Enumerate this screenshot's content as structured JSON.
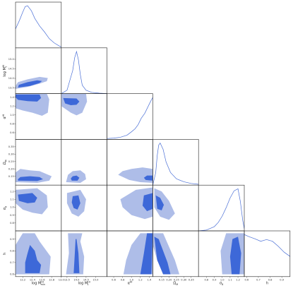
{
  "chart_data": {
    "type": "corner",
    "colors": {
      "outer_contour": "#aebde8",
      "inner_contour": "#3d68d8",
      "curve": "#4a6fd6",
      "frame": "#222222"
    },
    "parameters": [
      {
        "id": "logMmin",
        "label": "log M_min^HI",
        "range": [
          12.05,
          13.0
        ],
        "ticks": [
          12.2,
          12.4,
          12.6,
          12.8,
          13.0
        ],
        "tick_labels": [
          "12.2",
          "12.4",
          "12.6",
          "12.8",
          "13.0"
        ],
        "marginal": {
          "x": [
            12.05,
            12.13,
            12.2,
            12.25,
            12.3,
            12.38,
            12.45,
            12.55,
            12.65,
            12.75,
            12.85,
            12.95,
            13.0
          ],
          "y": [
            0.45,
            0.65,
            0.85,
            0.98,
            1.0,
            0.88,
            0.7,
            0.52,
            0.38,
            0.22,
            0.12,
            0.05,
            0.02
          ]
        }
      },
      {
        "id": "logM1",
        "label": "log M_1^HI",
        "range": [
          13.2,
          15.6
        ],
        "ticks": [
          13.5,
          14.0,
          14.5,
          15.0
        ],
        "tick_labels": [
          "13.5",
          "14.0",
          "14.5",
          "15.0"
        ],
        "marginal": {
          "x": [
            13.2,
            13.5,
            13.8,
            13.9,
            14.0,
            14.1,
            14.2,
            14.3,
            14.5,
            14.8,
            15.2,
            15.6
          ],
          "y": [
            0.0,
            0.08,
            0.55,
            0.85,
            1.0,
            0.8,
            0.45,
            0.2,
            0.08,
            0.03,
            0.01,
            0.0
          ]
        }
      },
      {
        "id": "alpha",
        "label": "α^HI",
        "range": [
          0.45,
          1.48
        ],
        "ticks": [
          0.6,
          0.8,
          1.0,
          1.2,
          1.4
        ],
        "tick_labels": [
          "0.6",
          "0.8",
          "1.0",
          "1.2",
          "1.4"
        ],
        "marginal": {
          "x": [
            0.45,
            0.6,
            0.75,
            0.9,
            1.0,
            1.08,
            1.15,
            1.22,
            1.3,
            1.36,
            1.42,
            1.48
          ],
          "y": [
            0.02,
            0.03,
            0.05,
            0.1,
            0.18,
            0.25,
            0.35,
            0.5,
            0.62,
            0.75,
            0.88,
            1.0
          ]
        }
      },
      {
        "id": "OmegaM",
        "label": "Ω_M",
        "range": [
          0.09,
          0.4
        ],
        "ticks": [
          0.15,
          0.2,
          0.25,
          0.3,
          0.35
        ],
        "tick_labels": [
          "0.15",
          "0.20",
          "0.25",
          "0.30",
          "0.35"
        ],
        "marginal": {
          "x": [
            0.09,
            0.11,
            0.12,
            0.13,
            0.14,
            0.16,
            0.18,
            0.21,
            0.25,
            0.3,
            0.35,
            0.4
          ],
          "y": [
            0.0,
            0.3,
            0.7,
            0.95,
            1.0,
            0.85,
            0.55,
            0.3,
            0.15,
            0.08,
            0.04,
            0.02
          ]
        }
      },
      {
        "id": "sigma8",
        "label": "σ_8",
        "range": [
          0.7,
          1.28
        ],
        "ticks": [
          0.8,
          0.9,
          1.0,
          1.1,
          1.2
        ],
        "tick_labels": [
          "0.8",
          "0.9",
          "1.0",
          "1.1",
          "1.2"
        ],
        "marginal": {
          "x": [
            0.7,
            0.8,
            0.9,
            0.95,
            1.0,
            1.05,
            1.1,
            1.15,
            1.2,
            1.23,
            1.26,
            1.28
          ],
          "y": [
            0.0,
            0.02,
            0.1,
            0.2,
            0.35,
            0.55,
            0.78,
            0.95,
            1.0,
            0.7,
            0.25,
            0.05
          ]
        }
      },
      {
        "id": "h",
        "label": "h",
        "range": [
          0.58,
          0.97
        ],
        "ticks": [
          0.6,
          0.7,
          0.8,
          0.9
        ],
        "tick_labels": [
          "0.6",
          "0.7",
          "0.8",
          "0.9"
        ],
        "marginal": {
          "x": [
            0.58,
            0.62,
            0.67,
            0.72,
            0.77,
            0.82,
            0.87,
            0.92,
            0.97
          ],
          "y": [
            1.0,
            0.95,
            0.9,
            0.84,
            0.88,
            0.84,
            0.72,
            0.58,
            0.48
          ]
        }
      }
    ],
    "joint": [
      {
        "x": "logMmin",
        "y": "logM1",
        "outer": [
          [
            12.05,
            13.45
          ],
          [
            12.3,
            13.55
          ],
          [
            12.55,
            13.72
          ],
          [
            12.7,
            13.85
          ],
          [
            12.72,
            14.02
          ],
          [
            12.55,
            14.08
          ],
          [
            12.3,
            13.95
          ],
          [
            12.1,
            13.8
          ],
          [
            12.05,
            13.6
          ]
        ],
        "inner": [
          [
            12.1,
            13.52
          ],
          [
            12.35,
            13.6
          ],
          [
            12.55,
            13.76
          ],
          [
            12.6,
            13.86
          ],
          [
            12.5,
            13.9
          ],
          [
            12.3,
            13.8
          ],
          [
            12.12,
            13.66
          ]
        ]
      },
      {
        "x": "logMmin",
        "y": "alpha",
        "outer": [
          [
            12.05,
            1.48
          ],
          [
            12.7,
            1.48
          ],
          [
            12.75,
            1.35
          ],
          [
            12.72,
            1.05
          ],
          [
            12.6,
            0.98
          ],
          [
            12.4,
            1.05
          ],
          [
            12.2,
            1.1
          ],
          [
            12.05,
            1.15
          ]
        ],
        "inner": [
          [
            12.05,
            1.46
          ],
          [
            12.55,
            1.46
          ],
          [
            12.58,
            1.38
          ],
          [
            12.5,
            1.3
          ],
          [
            12.3,
            1.31
          ],
          [
            12.1,
            1.34
          ],
          [
            12.05,
            1.4
          ]
        ]
      },
      {
        "x": "logMmin",
        "y": "OmegaM",
        "outer": [
          [
            12.05,
            0.11
          ],
          [
            12.5,
            0.105
          ],
          [
            12.75,
            0.12
          ],
          [
            12.8,
            0.15
          ],
          [
            12.55,
            0.185
          ],
          [
            12.35,
            0.19
          ],
          [
            12.15,
            0.2
          ],
          [
            12.05,
            0.175
          ]
        ],
        "inner": [
          [
            12.1,
            0.12
          ],
          [
            12.5,
            0.118
          ],
          [
            12.62,
            0.13
          ],
          [
            12.55,
            0.145
          ],
          [
            12.35,
            0.15
          ],
          [
            12.15,
            0.145
          ],
          [
            12.1,
            0.13
          ]
        ]
      },
      {
        "x": "logMmin",
        "y": "sigma8",
        "outer": [
          [
            12.05,
            1.22
          ],
          [
            12.5,
            1.24
          ],
          [
            12.7,
            1.15
          ],
          [
            12.72,
            1.0
          ],
          [
            12.6,
            0.91
          ],
          [
            12.4,
            0.93
          ],
          [
            12.2,
            0.97
          ],
          [
            12.05,
            1.05
          ]
        ],
        "inner": [
          [
            12.1,
            1.16
          ],
          [
            12.4,
            1.18
          ],
          [
            12.5,
            1.12
          ],
          [
            12.45,
            1.06
          ],
          [
            12.3,
            1.05
          ],
          [
            12.12,
            1.08
          ]
        ]
      },
      {
        "x": "logMmin",
        "y": "h",
        "outer": [
          [
            12.05,
            0.6
          ],
          [
            12.75,
            0.6
          ],
          [
            12.78,
            0.75
          ],
          [
            12.55,
            0.88
          ],
          [
            12.45,
            0.95
          ],
          [
            12.2,
            0.95
          ],
          [
            12.05,
            0.85
          ]
        ],
        "inner": [
          [
            12.25,
            0.61
          ],
          [
            12.55,
            0.61
          ],
          [
            12.58,
            0.68
          ],
          [
            12.5,
            0.72
          ],
          [
            12.45,
            0.8
          ],
          [
            12.35,
            0.85
          ],
          [
            12.3,
            0.78
          ],
          [
            12.25,
            0.7
          ]
        ]
      },
      {
        "x": "logM1",
        "y": "alpha",
        "outer": [
          [
            13.2,
            1.48
          ],
          [
            14.5,
            1.48
          ],
          [
            14.55,
            1.3
          ],
          [
            14.3,
            1.05
          ],
          [
            14.0,
            0.99
          ],
          [
            13.7,
            1.05
          ],
          [
            13.2,
            1.2
          ]
        ],
        "inner": [
          [
            13.3,
            1.38
          ],
          [
            14.0,
            1.37
          ],
          [
            14.15,
            1.3
          ],
          [
            14.0,
            1.23
          ],
          [
            13.7,
            1.22
          ],
          [
            13.4,
            1.26
          ]
        ]
      },
      {
        "x": "logM1",
        "y": "OmegaM",
        "outer": [
          [
            13.45,
            0.11
          ],
          [
            14.2,
            0.105
          ],
          [
            14.5,
            0.13
          ],
          [
            14.45,
            0.165
          ],
          [
            14.2,
            0.19
          ],
          [
            13.8,
            0.185
          ],
          [
            13.55,
            0.16
          ]
        ],
        "inner": [
          [
            13.75,
            0.12
          ],
          [
            14.05,
            0.12
          ],
          [
            14.15,
            0.14
          ],
          [
            14.0,
            0.155
          ],
          [
            13.8,
            0.15
          ],
          [
            13.7,
            0.135
          ]
        ]
      },
      {
        "x": "logM1",
        "y": "sigma8",
        "outer": [
          [
            13.5,
            1.18
          ],
          [
            14.2,
            1.22
          ],
          [
            14.5,
            1.1
          ],
          [
            14.4,
            0.95
          ],
          [
            14.1,
            0.88
          ],
          [
            13.75,
            0.92
          ],
          [
            13.5,
            1.05
          ]
        ],
        "inner": [
          [
            13.8,
            1.14
          ],
          [
            14.1,
            1.15
          ],
          [
            14.2,
            1.05
          ],
          [
            14.05,
            0.97
          ],
          [
            13.85,
            0.99
          ],
          [
            13.75,
            1.06
          ]
        ]
      },
      {
        "x": "logM1",
        "y": "h",
        "outer": [
          [
            13.45,
            0.6
          ],
          [
            14.35,
            0.6
          ],
          [
            14.4,
            0.75
          ],
          [
            14.2,
            0.88
          ],
          [
            14.3,
            0.95
          ],
          [
            13.55,
            0.95
          ],
          [
            13.6,
            0.78
          ]
        ],
        "inner": [
          [
            13.85,
            0.61
          ],
          [
            14.15,
            0.61
          ],
          [
            14.1,
            0.78
          ],
          [
            14.0,
            0.9
          ],
          [
            13.95,
            0.9
          ],
          [
            13.9,
            0.75
          ]
        ]
      },
      {
        "x": "alpha",
        "y": "OmegaM",
        "outer": [
          [
            0.7,
            0.16
          ],
          [
            0.95,
            0.125
          ],
          [
            1.2,
            0.11
          ],
          [
            1.48,
            0.105
          ],
          [
            1.48,
            0.2
          ],
          [
            1.25,
            0.21
          ],
          [
            1.0,
            0.2
          ],
          [
            0.8,
            0.185
          ]
        ],
        "inner": [
          [
            1.32,
            0.125
          ],
          [
            1.48,
            0.12
          ],
          [
            1.48,
            0.155
          ],
          [
            1.35,
            0.155
          ],
          [
            1.28,
            0.14
          ]
        ]
      },
      {
        "x": "alpha",
        "y": "sigma8",
        "outer": [
          [
            0.75,
            1.1
          ],
          [
            1.1,
            1.22
          ],
          [
            1.48,
            1.25
          ],
          [
            1.48,
            0.88
          ],
          [
            1.3,
            0.85
          ],
          [
            1.0,
            0.9
          ],
          [
            0.8,
            1.0
          ]
        ],
        "inner": [
          [
            1.28,
            1.15
          ],
          [
            1.48,
            1.18
          ],
          [
            1.48,
            0.98
          ],
          [
            1.35,
            0.95
          ],
          [
            1.25,
            1.02
          ]
        ]
      },
      {
        "x": "alpha",
        "y": "h",
        "outer": [
          [
            0.82,
            0.6
          ],
          [
            1.48,
            0.6
          ],
          [
            1.48,
            0.95
          ],
          [
            1.2,
            0.95
          ],
          [
            1.0,
            0.85
          ],
          [
            0.88,
            0.72
          ]
        ],
        "inner": [
          [
            1.2,
            0.6
          ],
          [
            1.45,
            0.6
          ],
          [
            1.48,
            0.95
          ],
          [
            1.35,
            0.95
          ],
          [
            1.28,
            0.78
          ]
        ]
      },
      {
        "x": "OmegaM",
        "y": "sigma8",
        "outer": [
          [
            0.1,
            1.24
          ],
          [
            0.15,
            1.2
          ],
          [
            0.2,
            1.08
          ],
          [
            0.24,
            0.92
          ],
          [
            0.2,
            0.84
          ],
          [
            0.14,
            0.88
          ],
          [
            0.1,
            1.0
          ]
        ],
        "inner": [
          [
            0.11,
            1.15
          ],
          [
            0.14,
            1.12
          ],
          [
            0.165,
            1.03
          ],
          [
            0.15,
            0.96
          ],
          [
            0.12,
            0.98
          ]
        ]
      },
      {
        "x": "OmegaM",
        "y": "h",
        "outer": [
          [
            0.09,
            0.95
          ],
          [
            0.16,
            0.95
          ],
          [
            0.24,
            0.72
          ],
          [
            0.27,
            0.6
          ],
          [
            0.17,
            0.6
          ],
          [
            0.12,
            0.72
          ],
          [
            0.09,
            0.85
          ]
        ],
        "inner": [
          [
            0.1,
            0.92
          ],
          [
            0.13,
            0.9
          ],
          [
            0.19,
            0.7
          ],
          [
            0.21,
            0.6
          ],
          [
            0.16,
            0.6
          ],
          [
            0.12,
            0.72
          ]
        ]
      },
      {
        "x": "sigma8",
        "y": "h",
        "outer": [
          [
            1.0,
            0.6
          ],
          [
            1.28,
            0.6
          ],
          [
            1.28,
            0.95
          ],
          [
            1.05,
            0.95
          ],
          [
            0.98,
            0.8
          ]
        ],
        "inner": [
          [
            1.12,
            0.6
          ],
          [
            1.22,
            0.6
          ],
          [
            1.24,
            0.78
          ],
          [
            1.2,
            0.92
          ],
          [
            1.13,
            0.9
          ],
          [
            1.1,
            0.75
          ]
        ]
      }
    ]
  }
}
